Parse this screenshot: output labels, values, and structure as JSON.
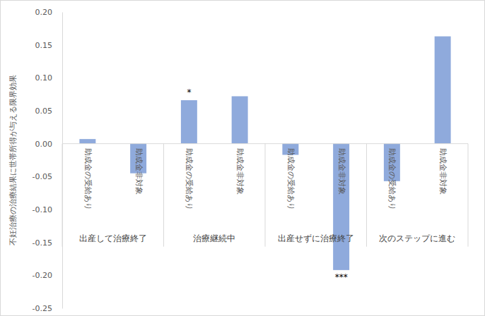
{
  "chart_data": {
    "type": "bar",
    "y_label": "不妊治療の治療結果に世帯所得が与える限界効果",
    "categories": [
      "助成金の受給あり",
      "助成金非対象",
      "助成金の受給あり",
      "助成金非対象",
      "助成金の受給あり",
      "助成金非対象",
      "助成金の受給あり",
      "助成金非対象"
    ],
    "values": [
      0.007,
      -0.045,
      0.066,
      0.072,
      -0.017,
      -0.192,
      -0.057,
      0.163
    ],
    "annotations": [
      null,
      null,
      "*",
      null,
      null,
      "***",
      null,
      null
    ],
    "groups": [
      "出産して治療終了",
      "治療継続中",
      "出産せずに治療終了",
      "次のステップに進む"
    ],
    "color": "#8faadc",
    "ylim": [
      -0.25,
      0.2
    ],
    "yticks": [
      -0.25,
      {
        "value": -0.2,
        "label": "-0.20"
      },
      -0.15,
      {
        "value": -0.1,
        "label": "-0.10"
      },
      -0.05,
      {
        "value": 0,
        "label": "0.00"
      },
      0.05,
      {
        "value": 0.1,
        "label": "0.10"
      },
      0.15,
      {
        "value": 0.2,
        "label": "0.20"
      }
    ],
    "grid": false
  }
}
